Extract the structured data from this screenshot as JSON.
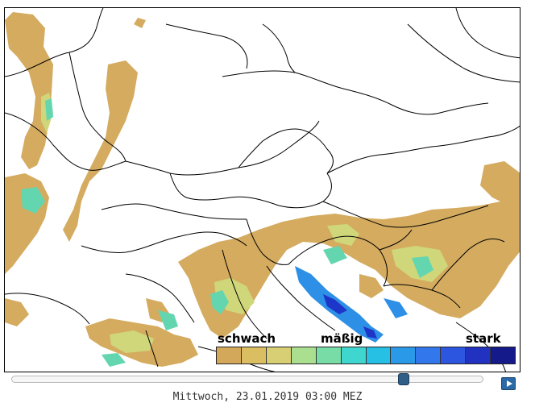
{
  "map": {
    "region": "Mitteleuropa / Adria",
    "layer": "Niederschlag"
  },
  "legend": {
    "low_label": "schwach",
    "mid_label": "mäßig",
    "high_label": "stark",
    "colors": [
      "#d4a85a",
      "#dcbe62",
      "#d8cf74",
      "#a9df8f",
      "#78dca6",
      "#3ed6cf",
      "#27c0e5",
      "#2a9ae8",
      "#3278ec",
      "#2c55e0",
      "#2232c0",
      "#141a8a"
    ]
  },
  "slider": {
    "position_fraction": 0.84
  },
  "controls": {
    "play_icon": "play-icon"
  },
  "timestamp": "Mittwoch, 23.01.2019 03:00 MEZ"
}
